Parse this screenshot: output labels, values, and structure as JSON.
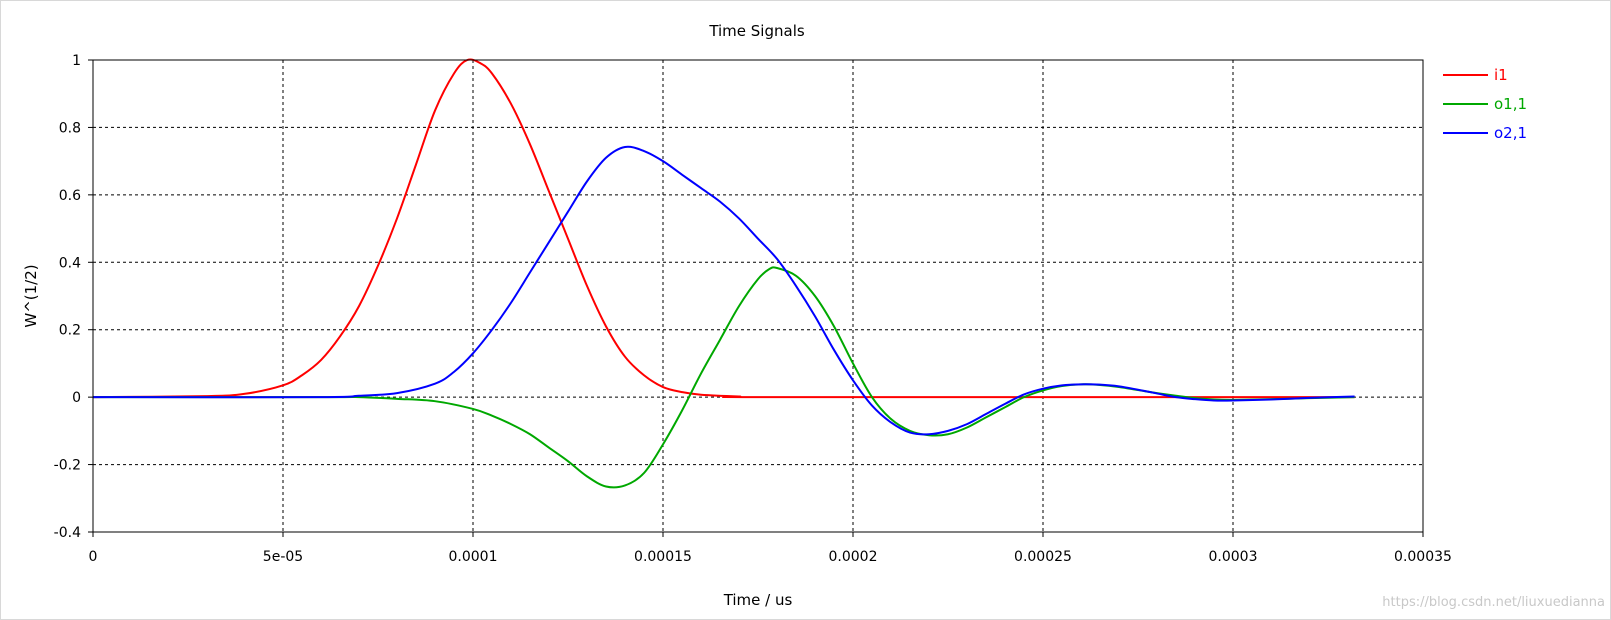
{
  "chart_data": {
    "type": "line",
    "title": "Time Signals",
    "xlabel": "Time / us",
    "ylabel": "W^(1/2)",
    "xlim": [
      0,
      0.00035
    ],
    "ylim": [
      -0.4,
      1
    ],
    "xticks": [
      {
        "value": 0,
        "label": "0"
      },
      {
        "value": 5e-05,
        "label": "5e-05"
      },
      {
        "value": 0.0001,
        "label": "0.0001"
      },
      {
        "value": 0.00015,
        "label": "0.00015"
      },
      {
        "value": 0.0002,
        "label": "0.0002"
      },
      {
        "value": 0.00025,
        "label": "0.00025"
      },
      {
        "value": 0.0003,
        "label": "0.0003"
      },
      {
        "value": 0.00035,
        "label": "0.00035"
      }
    ],
    "yticks": [
      {
        "value": -0.4,
        "label": "-0.4"
      },
      {
        "value": -0.2,
        "label": "-0.2"
      },
      {
        "value": 0,
        "label": "0"
      },
      {
        "value": 0.2,
        "label": "0.2"
      },
      {
        "value": 0.4,
        "label": "0.4"
      },
      {
        "value": 0.6,
        "label": "0.6"
      },
      {
        "value": 0.8,
        "label": "0.8"
      },
      {
        "value": 1,
        "label": "1"
      }
    ],
    "grid": true,
    "legend_position": "right",
    "series": [
      {
        "name": "i1",
        "color": "#ff0000",
        "points": [
          [
            0,
            0
          ],
          [
            3e-05,
            0.003
          ],
          [
            4e-05,
            0.01
          ],
          [
            5e-05,
            0.035
          ],
          [
            5.5e-05,
            0.065
          ],
          [
            6e-05,
            0.11
          ],
          [
            6.5e-05,
            0.18
          ],
          [
            7e-05,
            0.27
          ],
          [
            7.5e-05,
            0.39
          ],
          [
            8e-05,
            0.53
          ],
          [
            8.5e-05,
            0.69
          ],
          [
            9e-05,
            0.85
          ],
          [
            9.5e-05,
            0.96
          ],
          [
            9.85e-05,
            1.0
          ],
          [
            0.000102,
            0.99
          ],
          [
            0.000105,
            0.96
          ],
          [
            0.00011,
            0.87
          ],
          [
            0.000115,
            0.75
          ],
          [
            0.00012,
            0.61
          ],
          [
            0.000125,
            0.47
          ],
          [
            0.00013,
            0.33
          ],
          [
            0.000135,
            0.21
          ],
          [
            0.00014,
            0.12
          ],
          [
            0.000145,
            0.065
          ],
          [
            0.00015,
            0.03
          ],
          [
            0.000155,
            0.015
          ],
          [
            0.00016,
            0.007
          ],
          [
            0.00017,
            0.002
          ],
          [
            0.00018,
            0
          ],
          [
            0.000332,
            0
          ]
        ]
      },
      {
        "name": "o1,1",
        "color": "#00a800",
        "points": [
          [
            0,
            0
          ],
          [
            6e-05,
            0
          ],
          [
            7e-05,
            0
          ],
          [
            8e-05,
            -0.005
          ],
          [
            9e-05,
            -0.012
          ],
          [
            0.0001,
            -0.035
          ],
          [
            0.000105,
            -0.055
          ],
          [
            0.00011,
            -0.08
          ],
          [
            0.000115,
            -0.11
          ],
          [
            0.00012,
            -0.15
          ],
          [
            0.000125,
            -0.19
          ],
          [
            0.00013,
            -0.235
          ],
          [
            0.000135,
            -0.265
          ],
          [
            0.00014,
            -0.262
          ],
          [
            0.000145,
            -0.225
          ],
          [
            0.00015,
            -0.14
          ],
          [
            0.000155,
            -0.04
          ],
          [
            0.00016,
            0.07
          ],
          [
            0.000165,
            0.17
          ],
          [
            0.00017,
            0.27
          ],
          [
            0.000175,
            0.35
          ],
          [
            0.000178,
            0.38
          ],
          [
            0.00018,
            0.383
          ],
          [
            0.000185,
            0.36
          ],
          [
            0.00019,
            0.3
          ],
          [
            0.000195,
            0.21
          ],
          [
            0.0002,
            0.1
          ],
          [
            0.000205,
            0.0
          ],
          [
            0.00021,
            -0.065
          ],
          [
            0.000215,
            -0.1
          ],
          [
            0.00022,
            -0.113
          ],
          [
            0.000225,
            -0.11
          ],
          [
            0.00023,
            -0.09
          ],
          [
            0.000235,
            -0.06
          ],
          [
            0.00024,
            -0.03
          ],
          [
            0.000245,
            0.0
          ],
          [
            0.00025,
            0.02
          ],
          [
            0.000255,
            0.033
          ],
          [
            0.00026,
            0.038
          ],
          [
            0.000265,
            0.036
          ],
          [
            0.00027,
            0.03
          ],
          [
            0.000275,
            0.021
          ],
          [
            0.00028,
            0.012
          ],
          [
            0.000285,
            0.004
          ],
          [
            0.00029,
            -0.003
          ],
          [
            0.000295,
            -0.007
          ],
          [
            0.0003,
            -0.008
          ],
          [
            0.00031,
            -0.006
          ],
          [
            0.00032,
            -0.003
          ],
          [
            0.000332,
            0.0
          ]
        ]
      },
      {
        "name": "o2,1",
        "color": "#0000ff",
        "points": [
          [
            0,
            0
          ],
          [
            6e-05,
            0
          ],
          [
            7e-05,
            0.004
          ],
          [
            8e-05,
            0.012
          ],
          [
            9e-05,
            0.04
          ],
          [
            9.5e-05,
            0.075
          ],
          [
            0.0001,
            0.13
          ],
          [
            0.000105,
            0.2
          ],
          [
            0.00011,
            0.28
          ],
          [
            0.000115,
            0.37
          ],
          [
            0.00012,
            0.46
          ],
          [
            0.000125,
            0.55
          ],
          [
            0.00013,
            0.64
          ],
          [
            0.000135,
            0.71
          ],
          [
            0.00014,
            0.742
          ],
          [
            0.000145,
            0.73
          ],
          [
            0.00015,
            0.7
          ],
          [
            0.000155,
            0.66
          ],
          [
            0.00016,
            0.62
          ],
          [
            0.000165,
            0.58
          ],
          [
            0.00017,
            0.53
          ],
          [
            0.000175,
            0.47
          ],
          [
            0.00018,
            0.41
          ],
          [
            0.000185,
            0.33
          ],
          [
            0.00019,
            0.24
          ],
          [
            0.000195,
            0.14
          ],
          [
            0.0002,
            0.05
          ],
          [
            0.000205,
            -0.025
          ],
          [
            0.00021,
            -0.075
          ],
          [
            0.000215,
            -0.105
          ],
          [
            0.00022,
            -0.11
          ],
          [
            0.000225,
            -0.1
          ],
          [
            0.00023,
            -0.08
          ],
          [
            0.000235,
            -0.05
          ],
          [
            0.00024,
            -0.02
          ],
          [
            0.000245,
            0.008
          ],
          [
            0.00025,
            0.025
          ],
          [
            0.000255,
            0.035
          ],
          [
            0.00026,
            0.038
          ],
          [
            0.000265,
            0.037
          ],
          [
            0.00027,
            0.032
          ],
          [
            0.000275,
            0.022
          ],
          [
            0.00028,
            0.011
          ],
          [
            0.000285,
            0.0
          ],
          [
            0.00029,
            -0.006
          ],
          [
            0.000295,
            -0.01
          ],
          [
            0.0003,
            -0.01
          ],
          [
            0.00031,
            -0.007
          ],
          [
            0.00032,
            -0.002
          ],
          [
            0.000332,
            0.002
          ]
        ]
      }
    ]
  },
  "watermark": "https://blog.csdn.net/liuxuedianna"
}
